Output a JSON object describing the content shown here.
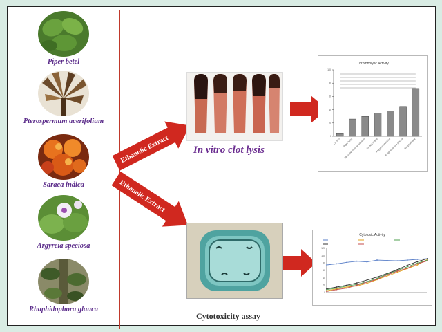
{
  "plants": [
    {
      "name": "Piper betel",
      "color": "#5e8f3a",
      "accent": "#2f5f1e"
    },
    {
      "name": "Pterospermum acerifolium",
      "color": "#7a5a3a",
      "accent": "#c9b7a0"
    },
    {
      "name": "Saraca indica",
      "color": "#d9621a",
      "accent": "#a81f10"
    },
    {
      "name": "Argyreia speciosa",
      "color": "#6fa344",
      "accent": "#e9dff0"
    },
    {
      "name": "Rhaphidophora glauca",
      "color": "#6b6e48",
      "accent": "#3d4a2a"
    }
  ],
  "arrows": {
    "upper_label": "Ethanolic Extract",
    "lower_label": "Ethanolic Extract",
    "color": "#d0281f"
  },
  "clot_lysis": {
    "title_italic": "In vitro",
    "title_rest": " clot lysis"
  },
  "cytotoxicity": {
    "title": "Cytotoxicity assay"
  },
  "chart_data": [
    {
      "type": "bar",
      "title": "Thrombolytic Activity",
      "categories": [
        "Control",
        "Piper betel",
        "Pterospermum acerifolium",
        "Saraca indica",
        "Argyreia speciosa",
        "Rhaphidophora glauca",
        "Streptokinase"
      ],
      "values": [
        4,
        26,
        30,
        35,
        38,
        45,
        72
      ],
      "ylim": [
        0,
        100
      ],
      "bar_color": "#8a8a8a"
    },
    {
      "type": "line",
      "title": "Cytotoxic Activity",
      "x": [
        1,
        2,
        3,
        4,
        5,
        6,
        7,
        8,
        9,
        10,
        11
      ],
      "series": [
        {
          "values": [
            75,
            78,
            82,
            85,
            83,
            88,
            87,
            86,
            88,
            90,
            92
          ],
          "color": "#5a7fc8"
        },
        {
          "values": [
            5,
            10,
            15,
            18,
            25,
            35,
            45,
            55,
            65,
            75,
            90
          ],
          "color": "#e0a21b"
        },
        {
          "values": [
            8,
            12,
            18,
            22,
            30,
            38,
            50,
            60,
            70,
            80,
            88
          ],
          "color": "#4f9f4f"
        },
        {
          "values": [
            10,
            15,
            20,
            26,
            34,
            42,
            52,
            62,
            74,
            84,
            92
          ],
          "color": "#333333"
        },
        {
          "values": [
            3,
            8,
            12,
            20,
            28,
            36,
            48,
            58,
            66,
            78,
            86
          ],
          "color": "#c44d4d"
        }
      ],
      "ylim": [
        0,
        120
      ]
    }
  ]
}
